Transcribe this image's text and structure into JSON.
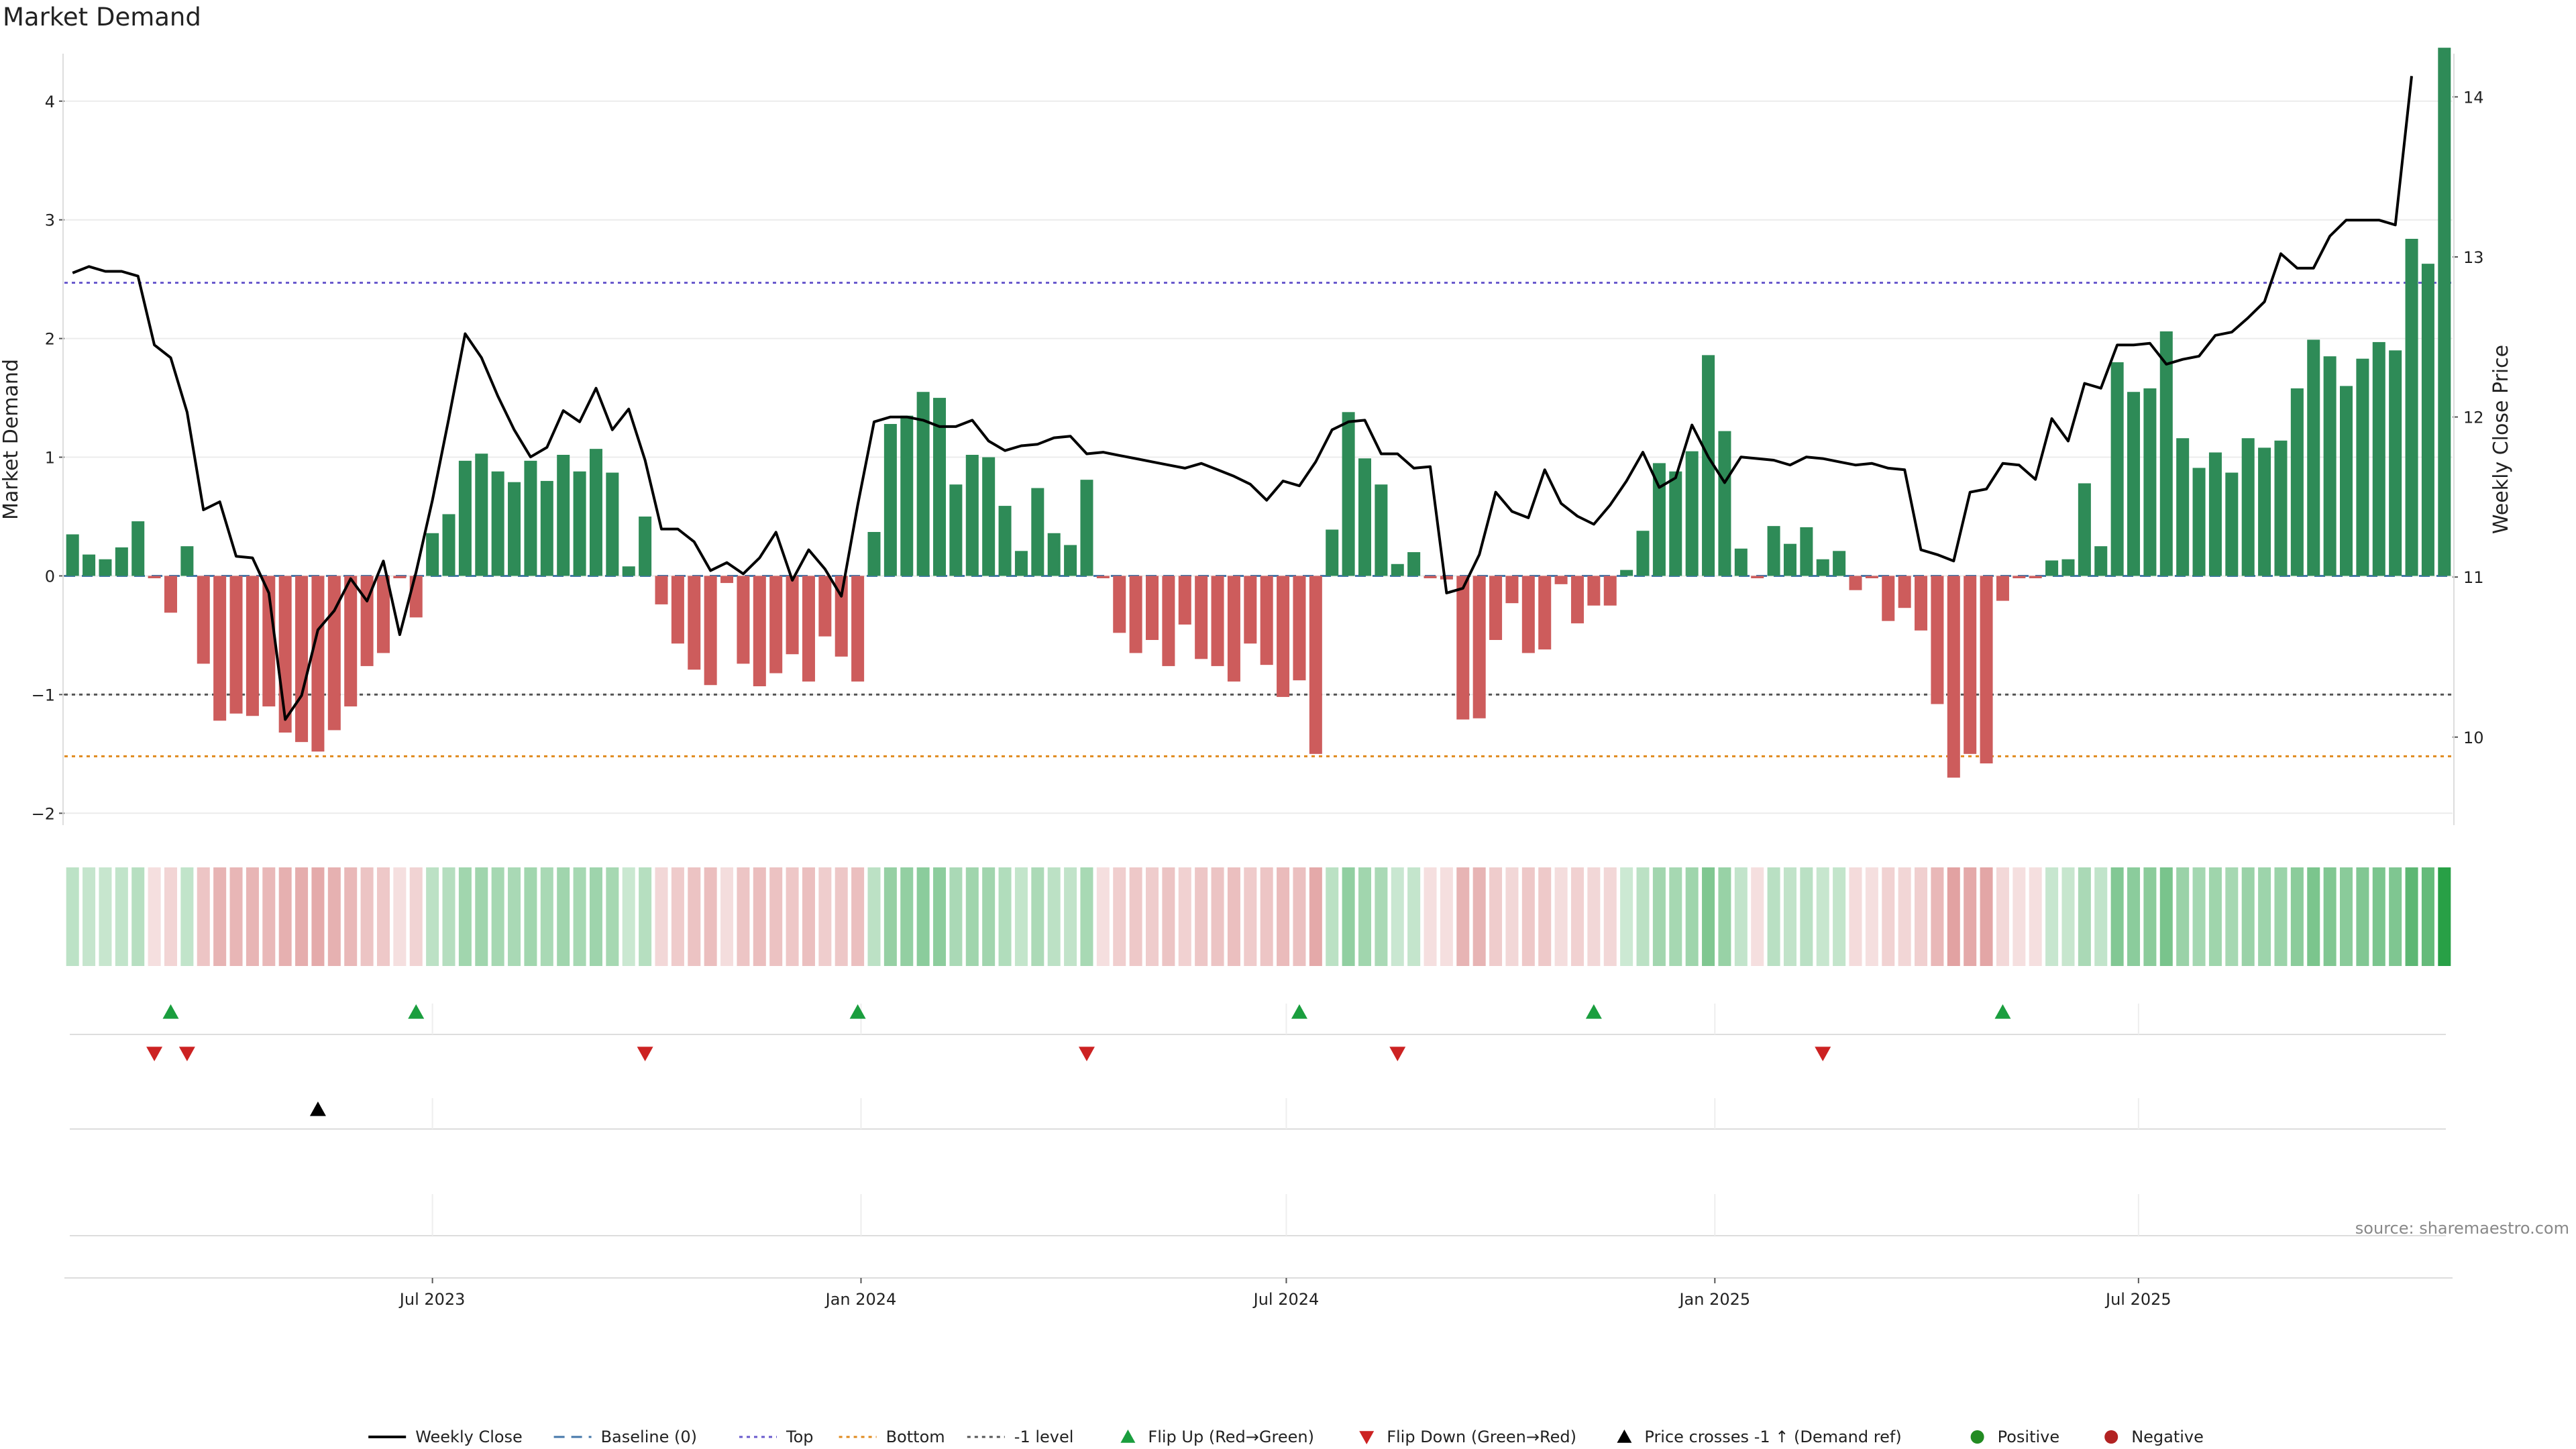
{
  "title": "Market Demand",
  "source": "source: sharemaestro.com",
  "colors": {
    "positive": "#2e8b57",
    "negative": "#cd5c5c",
    "price_line": "#000000",
    "baseline": "#4477aa",
    "top": "#6a5acd",
    "bottom": "#e08a1e",
    "minus1": "#555555",
    "flip_up": "#1a9e3e",
    "flip_down": "#cc2222"
  },
  "chart_data": {
    "type": "bar",
    "y_left_label": "Market Demand",
    "y_right_label": "Weekly Close Price",
    "y_left_range": [
      -2.1,
      4.4
    ],
    "y_right_range": [
      9.45,
      14.27
    ],
    "y_left_ticks": [
      -2,
      -1,
      0,
      1,
      2,
      3,
      4
    ],
    "y_left_tick_labels": [
      "−2",
      "−1",
      "0",
      "1",
      "2",
      "3",
      "4"
    ],
    "y_right_ticks": [
      10,
      11,
      12,
      13,
      14
    ],
    "y_right_tick_labels": [
      "10",
      "11",
      "12",
      "13",
      "14"
    ],
    "x_tick_labels": [
      {
        "label": "Jul 2023",
        "index": 22
      },
      {
        "label": "Jan 2024",
        "index": 48.2
      },
      {
        "label": "Jul 2024",
        "index": 74.2
      },
      {
        "label": "Jan 2025",
        "index": 100.4
      },
      {
        "label": "Jul 2025",
        "index": 126.3
      }
    ],
    "reference_lines": {
      "top": 2.47,
      "bottom": -1.52,
      "minus1": -1.0,
      "baseline": 0
    },
    "demand": [
      0.35,
      0.18,
      0.14,
      0.24,
      0.46,
      -0.02,
      -0.31,
      0.25,
      -0.74,
      -1.22,
      -1.16,
      -1.18,
      -1.1,
      -1.32,
      -1.4,
      -1.48,
      -1.3,
      -1.1,
      -0.76,
      -0.65,
      -0.02,
      -0.35,
      0.36,
      0.52,
      0.97,
      1.03,
      0.88,
      0.79,
      0.97,
      0.8,
      1.02,
      0.88,
      1.07,
      0.87,
      0.08,
      0.5,
      -0.24,
      -0.57,
      -0.79,
      -0.92,
      -0.06,
      -0.74,
      -0.93,
      -0.82,
      -0.66,
      -0.89,
      -0.51,
      -0.68,
      -0.89,
      0.37,
      1.28,
      1.35,
      1.55,
      1.5,
      0.77,
      1.02,
      1.0,
      0.59,
      0.21,
      0.74,
      0.36,
      0.26,
      0.81,
      -0.02,
      -0.48,
      -0.65,
      -0.54,
      -0.76,
      -0.41,
      -0.7,
      -0.76,
      -0.89,
      -0.57,
      -0.75,
      -1.02,
      -0.88,
      -1.5,
      0.39,
      1.38,
      0.99,
      0.77,
      0.1,
      0.2,
      -0.02,
      -0.03,
      -1.21,
      -1.2,
      -0.54,
      -0.23,
      -0.65,
      -0.62,
      -0.07,
      -0.4,
      -0.25,
      -0.25,
      0.05,
      0.38,
      0.95,
      0.88,
      1.05,
      1.86,
      1.22,
      0.23,
      -0.02,
      0.42,
      0.27,
      0.41,
      0.14,
      0.21,
      -0.12,
      -0.02,
      -0.38,
      -0.27,
      -0.46,
      -1.08,
      -1.7,
      -1.5,
      -1.58,
      -0.21,
      -0.02,
      -0.02,
      0.13,
      0.14,
      0.78,
      0.25,
      1.8,
      1.55,
      1.58,
      2.06,
      1.16,
      0.91,
      1.04,
      0.87,
      1.16,
      1.08,
      1.14,
      1.58,
      1.99,
      1.85,
      1.6,
      1.83,
      1.97,
      1.9,
      2.84,
      2.63,
      4.45
    ],
    "close": [
      12.9,
      12.94,
      12.91,
      12.91,
      12.88,
      12.45,
      12.37,
      12.03,
      11.42,
      11.47,
      11.13,
      11.12,
      10.9,
      10.11,
      10.26,
      10.67,
      10.79,
      10.99,
      10.85,
      11.1,
      10.64,
      11.03,
      11.48,
      11.99,
      12.52,
      12.37,
      12.13,
      11.92,
      11.75,
      11.81,
      12.04,
      11.97,
      12.18,
      11.92,
      12.05,
      11.73,
      11.3,
      11.3,
      11.22,
      11.04,
      11.09,
      11.02,
      11.12,
      11.28,
      10.98,
      11.17,
      11.05,
      10.88,
      11.45,
      11.97,
      12.0,
      12.0,
      11.98,
      11.94,
      11.94,
      11.98,
      11.85,
      11.79,
      11.82,
      11.83,
      11.87,
      11.88,
      11.77,
      11.78,
      11.76,
      11.74,
      11.72,
      11.7,
      11.68,
      11.71,
      11.67,
      11.63,
      11.58,
      11.48,
      11.6,
      11.57,
      11.72,
      11.92,
      11.97,
      11.98,
      11.77,
      11.77,
      11.68,
      11.69,
      10.9,
      10.93,
      11.14,
      11.53,
      11.41,
      11.37,
      11.67,
      11.46,
      11.38,
      11.33,
      11.45,
      11.6,
      11.78,
      11.56,
      11.62,
      11.95,
      11.75,
      11.59,
      11.75,
      11.74,
      11.73,
      11.7,
      11.75,
      11.74,
      11.72,
      11.7,
      11.71,
      11.68,
      11.67,
      11.17,
      11.14,
      11.1,
      11.53,
      11.55,
      11.71,
      11.7,
      11.61,
      11.99,
      11.85,
      12.21,
      12.18,
      12.45,
      12.45,
      12.46,
      12.33,
      12.36,
      12.38,
      12.51,
      12.53,
      12.62,
      12.72,
      13.02,
      12.93,
      12.93,
      13.13,
      13.23,
      13.23,
      13.23,
      13.2,
      14.13
    ],
    "flip_up_indices": [
      6,
      21,
      48,
      75,
      93,
      118
    ],
    "flip_down_indices": [
      5,
      7,
      35,
      62,
      81,
      107
    ],
    "price_cross_indices": [
      15
    ],
    "legend": [
      {
        "key": "close",
        "label": "Weekly Close"
      },
      {
        "key": "baseline",
        "label": "Baseline (0)"
      },
      {
        "key": "top",
        "label": "Top"
      },
      {
        "key": "bottom",
        "label": "Bottom"
      },
      {
        "key": "minus1",
        "label": "-1 level"
      },
      {
        "key": "flip_up",
        "label": "Flip Up (Red→Green)"
      },
      {
        "key": "flip_down",
        "label": "Flip Down (Green→Red)"
      },
      {
        "key": "cross",
        "label": "Price crosses -1 ↑ (Demand ref)"
      },
      {
        "key": "positive",
        "label": "Positive"
      },
      {
        "key": "negative",
        "label": "Negative"
      }
    ]
  }
}
